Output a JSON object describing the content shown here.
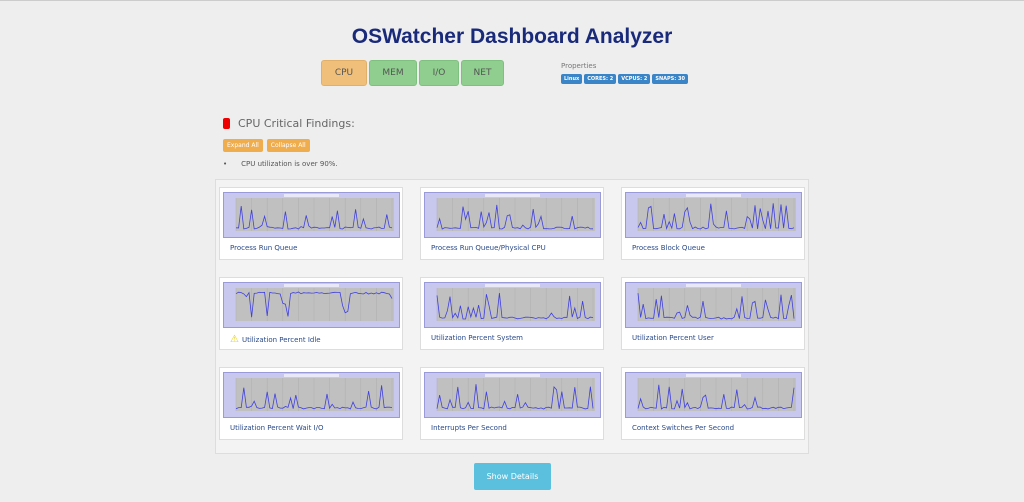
{
  "header": {
    "title": "OSWatcher Dashboard Analyzer"
  },
  "tabs": [
    {
      "label": "CPU",
      "active": true
    },
    {
      "label": "MEM"
    },
    {
      "label": "I/O"
    },
    {
      "label": "NET"
    }
  ],
  "properties": {
    "label": "Properties",
    "badges": [
      "Linux",
      "CORES: 2",
      "VCPUS: 2",
      "SNAPS: 30"
    ]
  },
  "findings": {
    "title": "CPU Critical Findings:",
    "expand_label": "Expand All",
    "collapse_label": "Collapse All",
    "items": [
      "CPU utilization is over 90%."
    ]
  },
  "cards": [
    {
      "title": "Process Run Queue"
    },
    {
      "title": "Process Run Queue/Physical CPU"
    },
    {
      "title": "Process Block Queue"
    },
    {
      "title": "Utilization Percent Idle",
      "warning": true
    },
    {
      "title": "Utilization Percent System"
    },
    {
      "title": "Utilization Percent User"
    },
    {
      "title": "Utilization Percent Wait I/O"
    },
    {
      "title": "Interrupts Per Second"
    },
    {
      "title": "Context Switches Per Second"
    }
  ],
  "show_details_label": "Show Details",
  "colors": {
    "active_tab": "#f0c07a",
    "tab": "#8fce8f",
    "badge": "#3a85c8",
    "button": "#5bc0de",
    "title": "#1a2a7a"
  }
}
